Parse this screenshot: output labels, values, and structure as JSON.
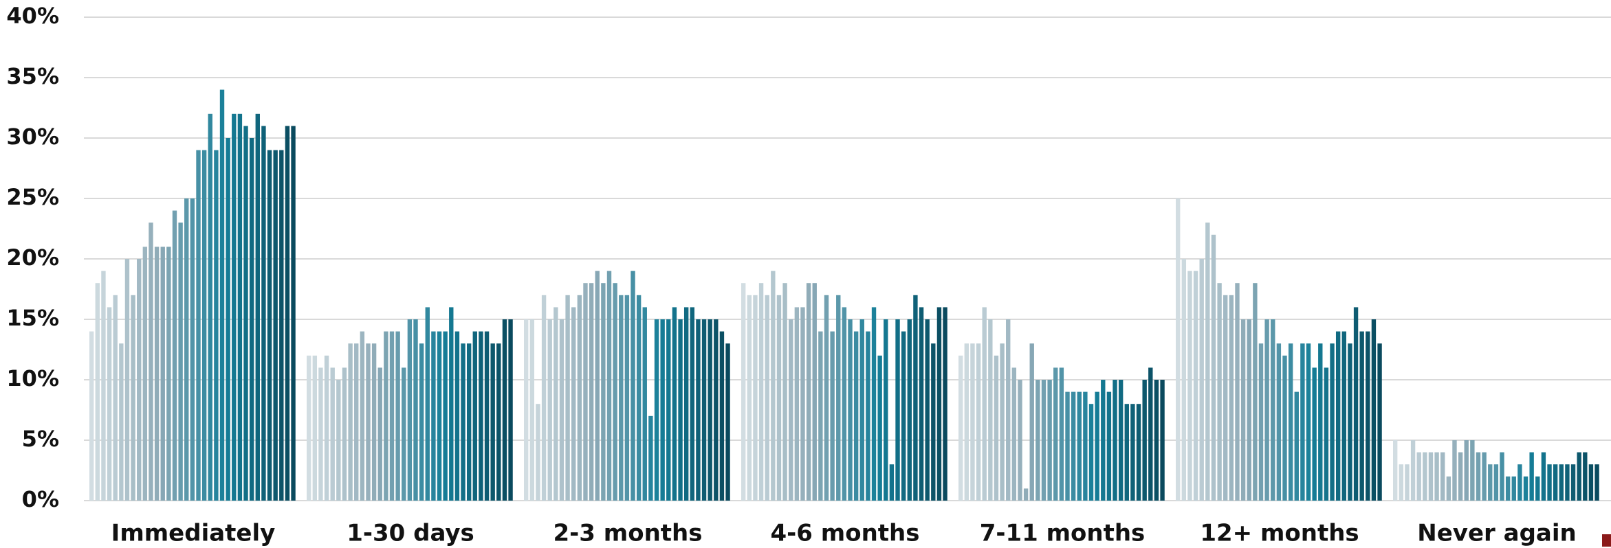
{
  "chart_data": {
    "type": "grouped_bar",
    "categories": [
      "Immediately",
      "1-30 days",
      "2-3 months",
      "4-6 months",
      "7-11 months",
      "12+ months",
      "Never again"
    ],
    "values": [
      [
        14,
        18,
        19,
        16,
        17,
        13,
        20,
        17,
        20,
        21,
        23,
        21,
        21,
        21,
        24,
        23,
        25,
        25,
        29,
        29,
        32,
        29,
        34,
        30,
        32,
        32,
        31,
        30,
        32,
        31,
        29,
        29,
        29,
        31,
        31
      ],
      [
        12,
        12,
        11,
        12,
        11,
        10,
        11,
        13,
        13,
        14,
        13,
        13,
        11,
        14,
        14,
        14,
        11,
        15,
        15,
        13,
        16,
        14,
        14,
        14,
        16,
        14,
        13,
        13,
        14,
        14,
        14,
        13,
        13,
        15,
        15
      ],
      [
        15,
        15,
        8,
        17,
        15,
        16,
        15,
        17,
        16,
        17,
        18,
        18,
        19,
        18,
        19,
        18,
        17,
        17,
        19,
        17,
        16,
        7,
        15,
        15,
        15,
        16,
        15,
        16,
        16,
        15,
        15,
        15,
        15,
        14,
        13
      ],
      [
        18,
        17,
        17,
        18,
        17,
        19,
        17,
        18,
        15,
        16,
        16,
        18,
        18,
        14,
        17,
        14,
        17,
        16,
        15,
        14,
        15,
        14,
        16,
        12,
        15,
        3,
        15,
        14,
        15,
        17,
        16,
        15,
        13,
        16,
        16
      ],
      [
        12,
        13,
        13,
        13,
        16,
        15,
        12,
        13,
        15,
        11,
        10,
        1,
        13,
        10,
        10,
        10,
        11,
        11,
        9,
        9,
        9,
        9,
        8,
        9,
        10,
        9,
        10,
        10,
        8,
        8,
        8,
        10,
        11,
        10,
        10
      ],
      [
        25,
        20,
        19,
        19,
        20,
        23,
        22,
        18,
        17,
        17,
        18,
        15,
        15,
        18,
        13,
        15,
        15,
        13,
        12,
        13,
        9,
        13,
        13,
        11,
        13,
        11,
        13,
        14,
        14,
        13,
        16,
        14,
        14,
        15,
        13
      ],
      [
        5,
        3,
        3,
        5,
        4,
        4,
        4,
        4,
        4,
        2,
        5,
        4,
        5,
        5,
        4,
        4,
        3,
        3,
        4,
        2,
        2,
        3,
        2,
        4,
        2,
        4,
        3,
        3,
        3,
        3,
        3,
        4,
        4,
        3,
        3
      ]
    ],
    "colors": [
      "#d2dde2",
      "#8eaab7",
      "#157e98",
      "#0a4a5e"
    ],
    "ylim": [
      0,
      40
    ],
    "yticks": [
      {
        "value": 0,
        "label": "0%"
      },
      {
        "value": 5,
        "label": "5%"
      },
      {
        "value": 10,
        "label": "10%"
      },
      {
        "value": 15,
        "label": "15%"
      },
      {
        "value": 20,
        "label": "20%"
      },
      {
        "value": 25,
        "label": "25%"
      },
      {
        "value": 30,
        "label": "30%"
      },
      {
        "value": 35,
        "label": "35%"
      },
      {
        "value": 40,
        "label": "40%"
      }
    ],
    "grid": true
  }
}
